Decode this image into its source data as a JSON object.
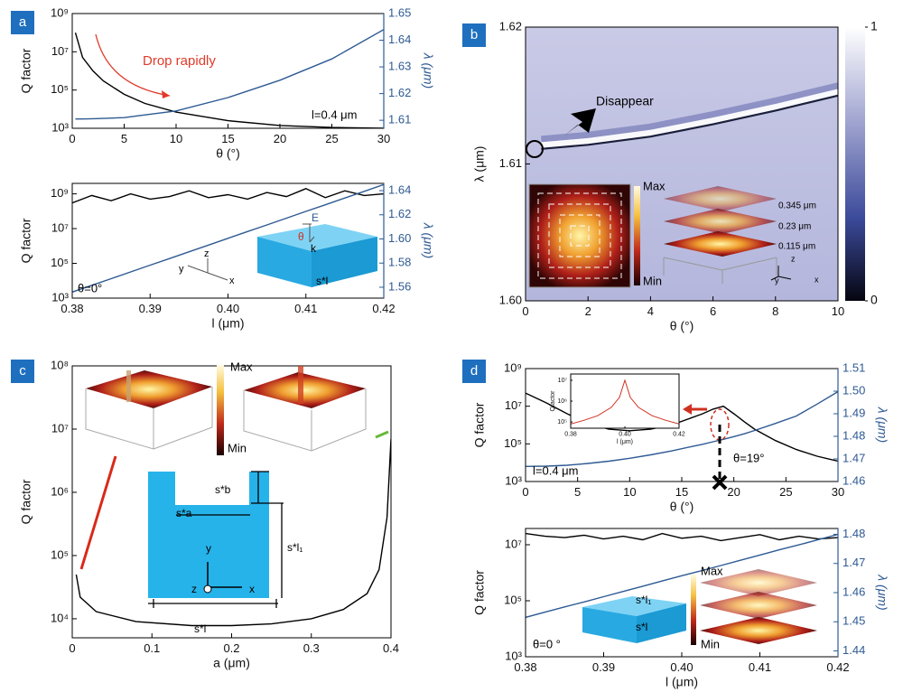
{
  "chart_data": [
    {
      "type": "line",
      "panel": "a",
      "ylog": true,
      "xlabel": "θ (°)",
      "ylabel": "Q factor",
      "y2label": "λ (μm)",
      "x": [
        0.3,
        1,
        2,
        3,
        5,
        7,
        10,
        15,
        20,
        25,
        30
      ],
      "series": [
        {
          "color": "#000000",
          "values": [
            100000000,
            5000000,
            1000000,
            300000,
            60000,
            20000,
            7000,
            2500,
            1400,
            1100,
            1000
          ]
        },
        {
          "color": "#2e5a93",
          "axis": "y2",
          "values": [
            1.6105,
            1.6105,
            1.6106,
            1.6107,
            1.611,
            1.612,
            1.6135,
            1.6185,
            1.625,
            1.633,
            1.644
          ]
        }
      ],
      "xlim": [
        0,
        30
      ],
      "xticks": [
        0,
        5,
        10,
        15,
        20,
        25,
        30
      ],
      "ylim": [
        1000,
        1000000000
      ],
      "yticks": [
        {
          "value": 1000,
          "label": "10³"
        },
        {
          "value": 100000,
          "label": "10⁵"
        },
        {
          "value": 10000000,
          "label": "10⁷"
        },
        {
          "value": 1000000000,
          "label": "10⁹"
        }
      ],
      "y2lim": [
        1.607,
        1.65
      ],
      "y2ticks": [
        1.61,
        1.62,
        1.63,
        1.64,
        1.65
      ],
      "annotations": [
        "Drop rapidly",
        "l=0.4 μm"
      ]
    },
    {
      "type": "line",
      "ylog": true,
      "xlabel": "l (μm)",
      "ylabel": "Q factor",
      "y2label": "λ (μm)",
      "x": [
        0.38,
        0.3825,
        0.385,
        0.3875,
        0.39,
        0.3925,
        0.395,
        0.3975,
        0.4,
        0.4025,
        0.405,
        0.4075,
        0.41,
        0.4125,
        0.415,
        0.4175,
        0.42
      ],
      "series": [
        {
          "color": "#000000",
          "values": [
            300000000,
            800000000,
            400000000,
            1000000000,
            500000000,
            700000000,
            1500000000,
            600000000,
            900000000,
            500000000,
            1200000000,
            700000000,
            2000000000,
            600000000,
            1500000000,
            800000000,
            1000000000
          ]
        },
        {
          "color": "#2e5a93",
          "axis": "y2",
          "values": [
            1.556,
            1.5616,
            1.5671,
            1.5727,
            1.5783,
            1.5838,
            1.5894,
            1.5949,
            1.6005,
            1.6061,
            1.6116,
            1.6172,
            1.6228,
            1.6283,
            1.6339,
            1.6394,
            1.645
          ]
        }
      ],
      "xlim": [
        0.38,
        0.42
      ],
      "xticks": [
        0.38,
        0.39,
        {
          "value": 0.4,
          "label": "0.40"
        },
        0.41,
        0.42
      ],
      "ylim": [
        1000,
        4000000000
      ],
      "yticks": [
        {
          "value": 1000,
          "label": "10³"
        },
        {
          "value": 100000,
          "label": "10⁵"
        },
        {
          "value": 10000000,
          "label": "10⁷"
        },
        {
          "value": 1000000000,
          "label": "10⁹"
        }
      ],
      "y2lim": [
        1.551,
        1.646
      ],
      "y2ticks": [
        1.56,
        1.58,
        {
          "value": 1.6,
          "label": "1.60"
        },
        1.62,
        1.64
      ],
      "annotations": [
        "θ=0°",
        "E",
        "k",
        "θ",
        "z",
        "y",
        "x",
        "s*l"
      ]
    },
    {
      "type": "heatmap",
      "panel": "b",
      "xlabel": "θ (°)",
      "ylabel": "λ (μm)",
      "x": [
        0.5,
        2,
        4,
        6,
        8,
        10
      ],
      "series": [
        {
          "color": "#1a1f3a",
          "values": [
            1.6111,
            1.6114,
            1.612,
            1.6129,
            1.6139,
            1.615
          ]
        }
      ],
      "xlim": [
        0,
        10
      ],
      "xticks": [
        0,
        2,
        4,
        6,
        8,
        10
      ],
      "ylim": [
        1.6,
        1.62
      ],
      "yticks": [
        {
          "value": 1.6,
          "label": "1.60"
        },
        1.61,
        1.62
      ],
      "clim": [
        0,
        1
      ],
      "cticks": [
        0,
        1
      ],
      "annotations": [
        "Disappear",
        "Max",
        "Min",
        "0.345 μm",
        "0.23 μm",
        "0.115 μm",
        "z",
        "y",
        "x"
      ]
    },
    {
      "type": "line",
      "panel": "c",
      "ylog": true,
      "xlabel": "a (μm)",
      "ylabel": "Q factor",
      "x": [
        0.005,
        0.01,
        0.03,
        0.08,
        0.15,
        0.2,
        0.25,
        0.3,
        0.34,
        0.37,
        0.385,
        0.395,
        0.4
      ],
      "series": [
        {
          "color": "#000000",
          "values": [
            50000,
            22000,
            13000,
            9000,
            7800,
            7800,
            8300,
            10000,
            14000,
            25000,
            60000,
            400000,
            7000000
          ]
        }
      ],
      "xlim": [
        0,
        0.4
      ],
      "xticks": [
        0,
        0.1,
        0.2,
        0.3,
        0.4
      ],
      "ylim": [
        5000,
        100000000
      ],
      "yticks": [
        {
          "value": 10000,
          "label": "10⁴"
        },
        {
          "value": 100000,
          "label": "10⁵"
        },
        {
          "value": 1000000,
          "label": "10⁶"
        },
        {
          "value": 10000000,
          "label": "10⁷"
        },
        {
          "value": 100000000,
          "label": "10⁸"
        }
      ],
      "annotations": [
        "Max",
        "Min",
        "s*b",
        "s*a",
        "s*l₁",
        "s*l",
        "y",
        "z",
        "x"
      ]
    },
    {
      "type": "line",
      "panel": "d",
      "ylog": true,
      "xlabel": "θ (°)",
      "ylabel": "Q factor",
      "y2label": "λ (μm)",
      "x": [
        0,
        2,
        4,
        6,
        8,
        10,
        12,
        14,
        16,
        17,
        18,
        19,
        20,
        21,
        22,
        24,
        26,
        28,
        30
      ],
      "series": [
        {
          "color": "#000000",
          "values": [
            50000000,
            15000000,
            4000000,
            1200000,
            600000,
            500000,
            600000,
            1000000,
            2500000,
            4000000,
            7000000,
            10000000,
            4000000,
            1500000,
            600000,
            150000,
            50000,
            22000,
            12000
          ]
        },
        {
          "color": "#2e5a93",
          "axis": "y2",
          "values": [
            1.4667,
            1.4668,
            1.4672,
            1.468,
            1.469,
            1.4703,
            1.4718,
            1.4735,
            1.4755,
            1.4765,
            1.4776,
            1.4787,
            1.4799,
            1.4811,
            1.4826,
            1.4857,
            1.489,
            1.4943,
            1.4998
          ]
        }
      ],
      "xlim": [
        0,
        30
      ],
      "xticks": [
        0,
        5,
        10,
        15,
        20,
        25,
        30
      ],
      "ylim": [
        1000,
        1000000000
      ],
      "yticks": [
        {
          "value": 1000,
          "label": "10³"
        },
        {
          "value": 100000,
          "label": "10⁵"
        },
        {
          "value": 10000000,
          "label": "10⁷"
        },
        {
          "value": 1000000000,
          "label": "10⁹"
        }
      ],
      "y2lim": [
        1.46,
        1.51
      ],
      "y2ticks": [
        1.46,
        1.47,
        1.48,
        1.49,
        {
          "value": 1.5,
          "label": "1.50"
        },
        1.51
      ],
      "annotations": [
        "l=0.4 μm",
        "θ=19°"
      ]
    },
    {
      "type": "line",
      "ylog": true,
      "xlabel": "l (μm)",
      "ylabel": "Qfactor",
      "x": [
        0.38,
        0.385,
        0.39,
        0.395,
        0.398,
        0.4,
        0.402,
        0.405,
        0.41,
        0.415,
        0.42
      ],
      "series": [
        {
          "color": "#d03020",
          "values": [
            80000,
            120000,
            200000,
            500000,
            1500000,
            10000000,
            1500000,
            500000,
            200000,
            120000,
            80000
          ]
        }
      ],
      "xlim": [
        0.38,
        0.42
      ],
      "xticks": [
        0.38,
        {
          "value": 0.4,
          "label": "0.40"
        },
        0.42
      ],
      "ylim": [
        50000,
        20000000
      ],
      "yticks": [
        {
          "value": 100000,
          "label": "10⁵"
        },
        {
          "value": 1000000,
          "label": "10⁶"
        },
        {
          "value": 10000000,
          "label": "10⁷"
        }
      ]
    },
    {
      "type": "line",
      "ylog": true,
      "xlabel": "l (μm)",
      "ylabel": "Q factor",
      "y2label": "λ (μm)",
      "x": [
        0.38,
        0.3825,
        0.385,
        0.3875,
        0.39,
        0.3925,
        0.395,
        0.3975,
        0.4,
        0.4025,
        0.405,
        0.4075,
        0.41,
        0.4125,
        0.415,
        0.4175,
        0.42
      ],
      "series": [
        {
          "color": "#000000",
          "values": [
            25000000,
            20000000,
            18000000,
            22000000,
            16000000,
            20000000,
            15000000,
            25000000,
            17000000,
            20000000,
            14000000,
            18000000,
            23000000,
            15000000,
            20000000,
            16000000,
            18000000
          ]
        },
        {
          "color": "#2e5a93",
          "axis": "y2",
          "values": [
            1.4515,
            1.4533,
            1.4551,
            1.4568,
            1.4586,
            1.4604,
            1.4622,
            1.464,
            1.4658,
            1.4675,
            1.4693,
            1.4711,
            1.4729,
            1.4747,
            1.4764,
            1.4782,
            1.48
          ]
        }
      ],
      "xlim": [
        0.38,
        0.42
      ],
      "xticks": [
        0.38,
        0.39,
        {
          "value": 0.4,
          "label": "0.40"
        },
        0.41,
        0.42
      ],
      "ylim": [
        1000,
        38000000
      ],
      "yticks": [
        {
          "value": 1000,
          "label": "10³"
        },
        {
          "value": 100000,
          "label": "10⁵"
        },
        {
          "value": 10000000,
          "label": "10⁷"
        }
      ],
      "y2lim": [
        1.438,
        1.482
      ],
      "y2ticks": [
        1.44,
        1.45,
        1.46,
        1.47,
        1.48
      ],
      "annotations": [
        "θ=0 °",
        "Max",
        "Min",
        "s*l₁",
        "s*l"
      ]
    }
  ]
}
